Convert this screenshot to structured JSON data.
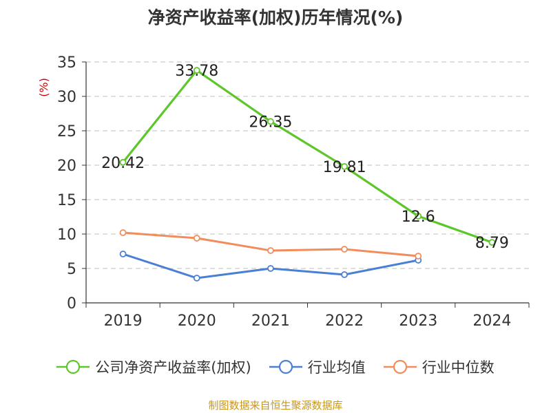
{
  "chart_data": {
    "type": "line",
    "title": "净资产收益率(加权)历年情况(%)",
    "ylabel": "(%)",
    "ylim": [
      0,
      35
    ],
    "yticks": [
      0,
      5,
      10,
      15,
      20,
      25,
      30,
      35
    ],
    "categories": [
      "2019",
      "2020",
      "2021",
      "2022",
      "2023",
      "2024"
    ],
    "grid": "horizontal-dashed",
    "legend_position": "bottom",
    "series": [
      {
        "name": "公司净资产收益率(加权)",
        "color": "#5cc62a",
        "values": [
          20.42,
          33.78,
          26.35,
          19.81,
          12.6,
          8.79
        ],
        "labels": [
          "20.42",
          "33.78",
          "26.35",
          "19.81",
          "12.6",
          "8.79"
        ]
      },
      {
        "name": "行业均值",
        "color": "#4a7fd6",
        "values": [
          7.1,
          3.6,
          5.0,
          4.1,
          6.2,
          null
        ]
      },
      {
        "name": "行业中位数",
        "color": "#f28c5a",
        "values": [
          10.2,
          9.4,
          7.6,
          7.8,
          6.8,
          null
        ]
      }
    ]
  },
  "source_text": "制图数据来自恒生聚源数据库"
}
